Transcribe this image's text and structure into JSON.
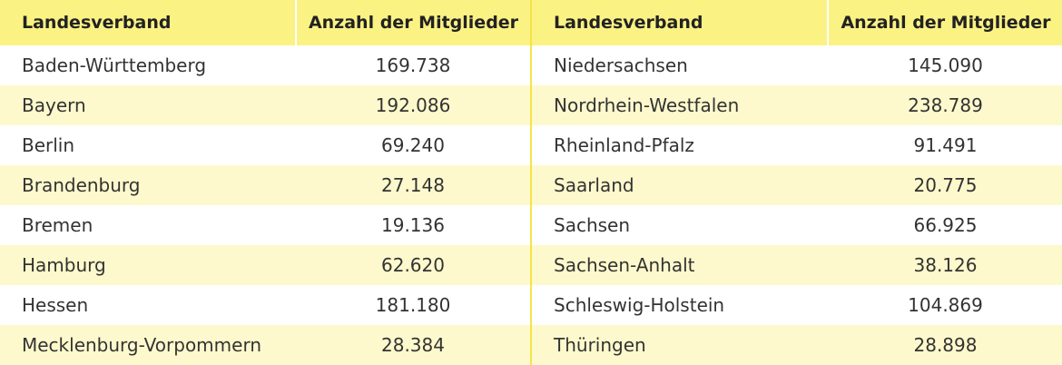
{
  "headers": {
    "name": "Landesverband",
    "count": "Anzahl der Mitglieder"
  },
  "left_rows": [
    {
      "name": "Baden-Württemberg",
      "count": "169.738"
    },
    {
      "name": "Bayern",
      "count": "192.086"
    },
    {
      "name": "Berlin",
      "count": "69.240"
    },
    {
      "name": "Brandenburg",
      "count": "27.148"
    },
    {
      "name": "Bremen",
      "count": "19.136"
    },
    {
      "name": "Hamburg",
      "count": "62.620"
    },
    {
      "name": "Hessen",
      "count": "181.180"
    },
    {
      "name": "Mecklenburg-Vorpommern",
      "count": "28.384"
    }
  ],
  "right_rows": [
    {
      "name": "Niedersachsen",
      "count": "145.090"
    },
    {
      "name": "Nordrhein-Westfalen",
      "count": "238.789"
    },
    {
      "name": "Rheinland-Pfalz",
      "count": "91.491"
    },
    {
      "name": "Saarland",
      "count": "20.775"
    },
    {
      "name": "Sachsen",
      "count": "66.925"
    },
    {
      "name": "Sachsen-Anhalt",
      "count": "38.126"
    },
    {
      "name": "Schleswig-Holstein",
      "count": "104.869"
    },
    {
      "name": "Thüringen",
      "count": "28.898"
    }
  ],
  "colors": {
    "header_bg": "#fbf284",
    "stripe_bg": "#fdf9cc",
    "divider": "#f5e34a"
  }
}
